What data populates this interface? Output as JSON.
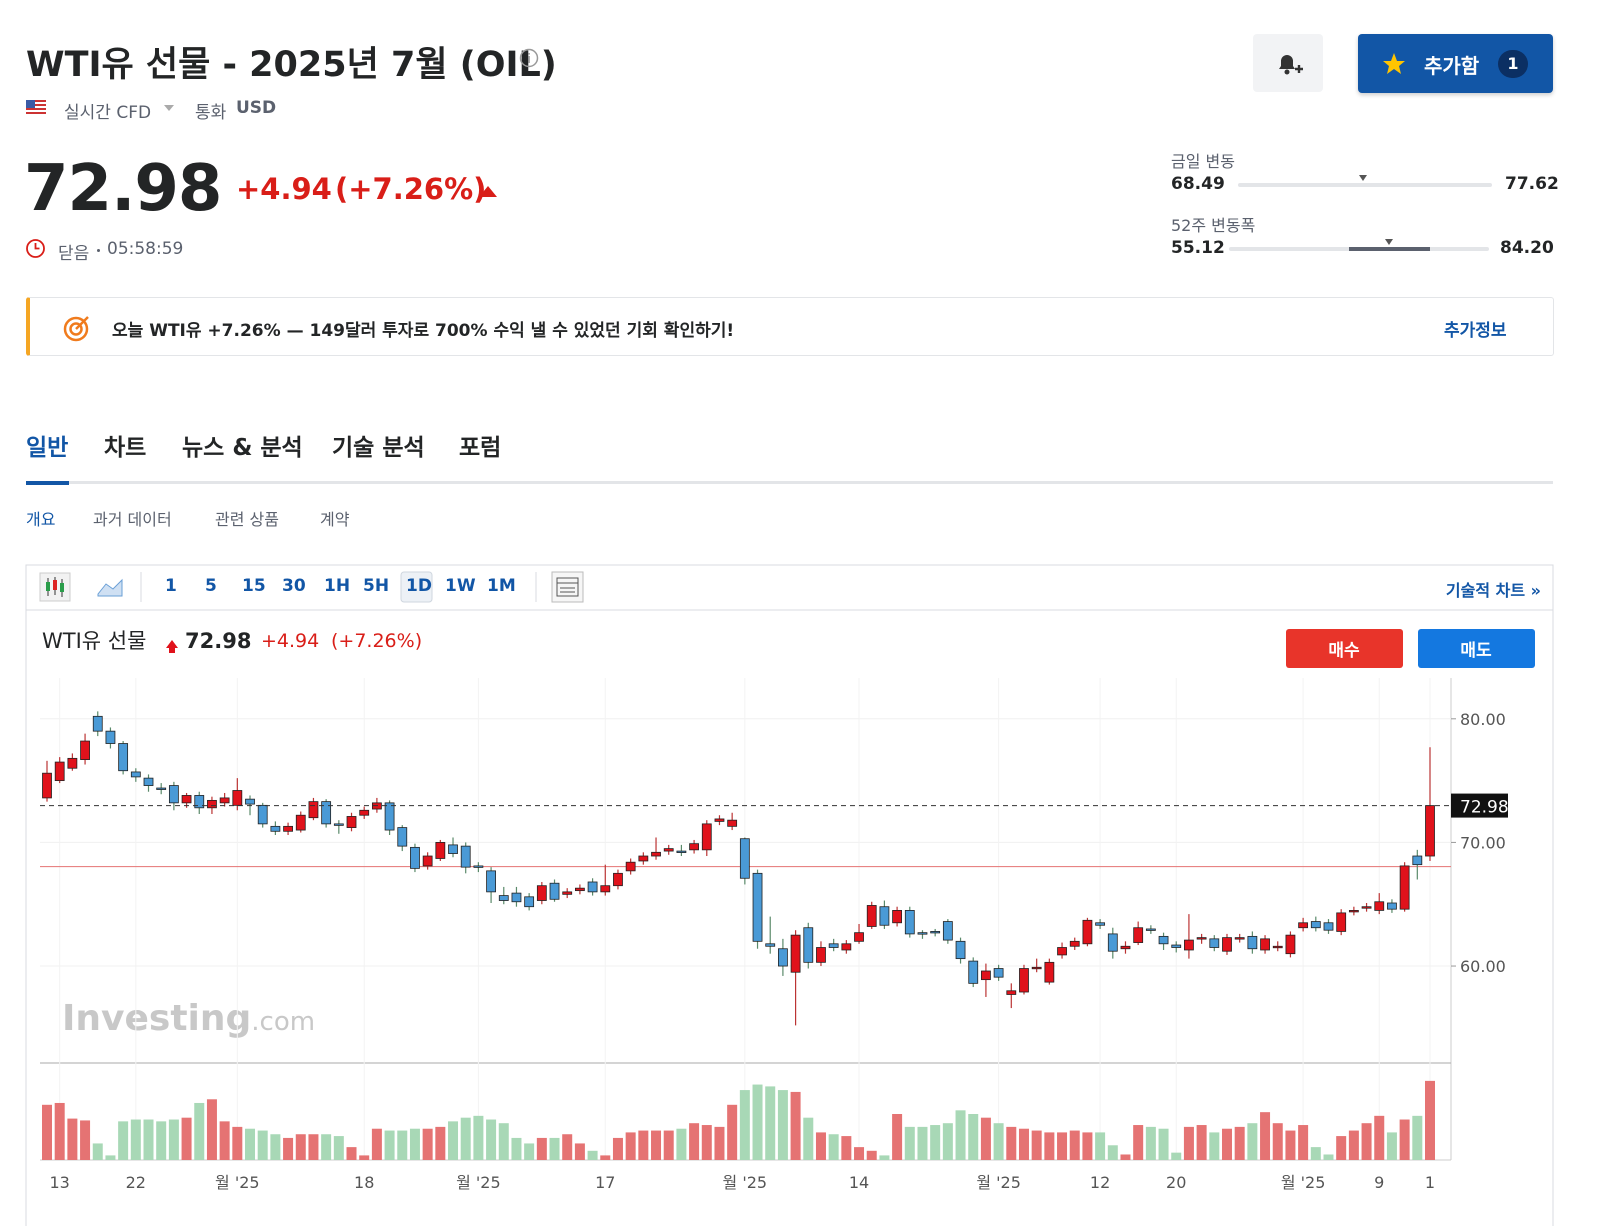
{
  "header": {
    "title": "WTI유 선물 - 2025년 7월 (OIL)",
    "realtime": "실시간 CFD",
    "currency_label": "통화",
    "currency": "USD",
    "add_button": "추가함",
    "add_count": "1"
  },
  "quote": {
    "price": "72.98",
    "change": "+4.94",
    "change_pct": "(+7.26%)",
    "status": "닫음",
    "time": "05:58:59"
  },
  "ranges": {
    "day": {
      "label": "금일 변동",
      "low": "68.49",
      "high": "77.62"
    },
    "week52": {
      "label": "52주 변동폭",
      "low": "55.12",
      "high": "84.20"
    }
  },
  "banner": {
    "text": "오늘 WTI유 +7.26% — 149달러 투자로 700% 수익 낼 수 있었던 기회 확인하기!",
    "link": "추가정보"
  },
  "tabs": [
    "일반",
    "차트",
    "뉴스 & 분석",
    "기술 분석",
    "포럼"
  ],
  "subtabs": [
    "개요",
    "과거 데이터",
    "관련 상품",
    "계약"
  ],
  "toolbar": {
    "intervals": [
      "1",
      "5",
      "15",
      "30",
      "1H",
      "5H",
      "1D",
      "1W",
      "1M"
    ],
    "tech_chart": "기술적 차트 »"
  },
  "chart_data": {
    "type": "candlestick",
    "title": "WTI유 선물",
    "legend_change": "+4.94",
    "legend_pct": "(+7.26%)",
    "buy": "매수",
    "sell": "매도",
    "watermark": [
      "Investing",
      ".com"
    ],
    "up_color": "#e0121b",
    "down_color": "#4a9ad6",
    "volume_up_color": "#e57373",
    "volume_down_color": "#a8d8b6",
    "prev_close": 68.04,
    "prev_close_color": "#e57373",
    "ylim": [
      52.4,
      83.3
    ],
    "yticks": [
      {
        "value": 60,
        "label": "60.00"
      },
      {
        "value": 70,
        "label": "70.00"
      },
      {
        "value": 80,
        "label": "80.00"
      }
    ],
    "volume_lim": [
      0,
      100
    ],
    "categories": [
      null,
      "13",
      null,
      null,
      null,
      null,
      null,
      "22",
      null,
      null,
      null,
      null,
      null,
      null,
      null,
      "월 '25",
      null,
      null,
      null,
      null,
      null,
      null,
      null,
      null,
      null,
      "18",
      null,
      null,
      null,
      null,
      null,
      null,
      null,
      null,
      "월 '25",
      null,
      null,
      null,
      null,
      null,
      null,
      null,
      null,
      null,
      "17",
      null,
      null,
      null,
      null,
      null,
      null,
      null,
      null,
      null,
      null,
      "월 '25",
      null,
      null,
      null,
      null,
      null,
      null,
      null,
      null,
      "14",
      null,
      null,
      null,
      null,
      null,
      null,
      null,
      null,
      null,
      null,
      "월 '25",
      null,
      null,
      null,
      null,
      null,
      null,
      null,
      "12",
      null,
      null,
      null,
      null,
      null,
      "20",
      null,
      null,
      null,
      null,
      null,
      null,
      null,
      null,
      null,
      "월 '25",
      null,
      null,
      null,
      null,
      null,
      "9",
      null,
      null,
      null,
      "1"
    ],
    "open": [
      73.6,
      75.0,
      76.0,
      76.7,
      80.2,
      79.0,
      78.0,
      75.7,
      75.2,
      74.4,
      74.6,
      73.2,
      73.8,
      72.8,
      73.2,
      73.0,
      73.5,
      73.0,
      71.3,
      70.9,
      71.0,
      72.0,
      73.3,
      71.5,
      71.2,
      72.2,
      72.7,
      73.2,
      71.2,
      69.6,
      68.1,
      68.7,
      69.8,
      69.7,
      68.1,
      67.7,
      65.7,
      65.9,
      65.6,
      65.3,
      66.7,
      65.8,
      66.1,
      66.8,
      66.0,
      66.5,
      67.7,
      68.5,
      68.9,
      69.3,
      69.3,
      69.4,
      69.4,
      71.7,
      71.3,
      70.3,
      67.5,
      61.8,
      61.4,
      59.5,
      63.1,
      60.3,
      61.8,
      61.3,
      62.0,
      63.2,
      64.8,
      63.5,
      64.5,
      62.7,
      62.8,
      63.6,
      62.0,
      60.4,
      58.9,
      59.8,
      57.7,
      57.9,
      59.8,
      58.7,
      60.9,
      61.6,
      61.8,
      63.5,
      62.6,
      61.4,
      61.9,
      63.0,
      62.4,
      61.7,
      61.3,
      62.2,
      62.2,
      61.2,
      62.3,
      62.4,
      61.3,
      61.6,
      61.0,
      63.1,
      63.6,
      63.5,
      62.8,
      64.4,
      64.7,
      64.5,
      65.1,
      64.6,
      68.9,
      68.9
    ],
    "high": [
      76.6,
      76.9,
      77.2,
      78.8,
      80.6,
      79.3,
      78.2,
      76.0,
      75.5,
      74.8,
      74.9,
      74.0,
      74.1,
      73.7,
      74.0,
      75.2,
      73.8,
      73.2,
      71.7,
      71.6,
      72.5,
      73.6,
      73.5,
      71.8,
      72.4,
      72.9,
      73.6,
      73.4,
      71.4,
      69.9,
      69.2,
      70.2,
      70.4,
      70.0,
      68.4,
      68.0,
      66.4,
      66.4,
      65.9,
      66.8,
      67.0,
      66.3,
      66.6,
      67.1,
      68.2,
      67.8,
      68.7,
      69.2,
      70.4,
      69.8,
      69.8,
      70.2,
      71.8,
      72.2,
      72.4,
      70.4,
      67.8,
      64.0,
      62.2,
      62.9,
      63.5,
      62.0,
      62.2,
      62.1,
      63.4,
      65.2,
      65.3,
      64.8,
      64.8,
      62.9,
      63.0,
      63.8,
      62.3,
      60.7,
      60.2,
      60.1,
      58.6,
      60.1,
      60.6,
      60.6,
      61.9,
      62.3,
      63.9,
      63.8,
      63.1,
      62.0,
      63.6,
      63.3,
      62.7,
      62.0,
      64.2,
      62.6,
      62.5,
      62.6,
      62.6,
      62.8,
      62.5,
      62.0,
      62.8,
      63.9,
      64.0,
      63.8,
      64.6,
      64.8,
      65.1,
      65.9,
      65.4,
      68.4,
      69.4,
      77.7
    ],
    "low": [
      73.3,
      74.8,
      75.8,
      76.3,
      78.6,
      77.6,
      75.5,
      74.9,
      74.1,
      73.9,
      72.6,
      72.8,
      72.3,
      72.3,
      72.9,
      72.6,
      72.2,
      71.2,
      70.6,
      70.6,
      70.8,
      71.8,
      71.2,
      70.7,
      70.9,
      71.9,
      72.4,
      70.6,
      69.3,
      67.6,
      67.8,
      68.5,
      68.8,
      67.5,
      67.6,
      65.1,
      65.0,
      64.8,
      64.5,
      65.0,
      65.2,
      65.5,
      65.8,
      65.7,
      65.7,
      66.2,
      67.4,
      68.2,
      68.6,
      69.0,
      68.9,
      69.1,
      68.9,
      71.4,
      71.0,
      66.6,
      61.4,
      61.0,
      59.2,
      55.2,
      59.8,
      60.0,
      61.2,
      61.0,
      61.8,
      63.0,
      63.0,
      63.2,
      62.3,
      62.2,
      62.4,
      61.8,
      60.2,
      58.3,
      57.5,
      58.8,
      56.6,
      57.7,
      59.5,
      58.5,
      60.6,
      61.3,
      61.6,
      63.0,
      60.6,
      61.0,
      61.7,
      62.6,
      61.3,
      61.1,
      60.6,
      61.8,
      61.2,
      60.9,
      61.9,
      61.0,
      61.0,
      61.2,
      60.7,
      62.8,
      62.8,
      62.6,
      62.5,
      64.1,
      64.4,
      64.2,
      64.3,
      64.4,
      67.0,
      68.5
    ],
    "close": [
      75.6,
      76.5,
      76.8,
      78.2,
      79.0,
      78.0,
      75.8,
      75.3,
      74.6,
      74.3,
      73.2,
      73.8,
      72.8,
      73.4,
      73.6,
      74.2,
      73.1,
      71.5,
      70.9,
      71.3,
      72.2,
      73.3,
      71.5,
      71.4,
      72.1,
      72.6,
      73.2,
      71.0,
      69.7,
      67.9,
      68.9,
      70.0,
      69.1,
      68.0,
      68.0,
      66.0,
      65.3,
      65.2,
      64.8,
      66.5,
      65.4,
      66.0,
      66.3,
      66.0,
      66.5,
      67.5,
      68.4,
      68.9,
      69.2,
      69.5,
      69.2,
      69.9,
      71.5,
      71.9,
      71.8,
      67.1,
      62.0,
      61.6,
      60.0,
      62.5,
      60.3,
      61.5,
      61.5,
      61.8,
      62.7,
      64.9,
      63.3,
      64.5,
      62.6,
      62.6,
      62.7,
      62.1,
      60.6,
      58.6,
      59.6,
      59.1,
      58.0,
      59.8,
      59.9,
      60.3,
      61.5,
      62.0,
      63.7,
      63.3,
      61.2,
      61.6,
      63.1,
      62.9,
      61.8,
      61.5,
      62.1,
      62.3,
      61.5,
      62.3,
      62.3,
      61.4,
      62.2,
      61.6,
      62.5,
      63.5,
      63.1,
      62.9,
      64.3,
      64.5,
      64.8,
      65.2,
      64.6,
      68.1,
      68.2,
      72.98
    ],
    "volume": [
      60,
      62,
      45,
      43,
      18,
      5,
      42,
      44,
      44,
      42,
      44,
      46,
      62,
      66,
      42,
      36,
      34,
      32,
      28,
      24,
      28,
      28,
      28,
      26,
      14,
      5,
      34,
      32,
      32,
      34,
      34,
      36,
      42,
      46,
      48,
      44,
      40,
      24,
      18,
      24,
      24,
      28,
      18,
      10,
      5,
      24,
      30,
      32,
      32,
      32,
      34,
      40,
      38,
      36,
      60,
      76,
      82,
      80,
      76,
      74,
      46,
      30,
      28,
      26,
      14,
      10,
      5,
      50,
      36,
      36,
      38,
      40,
      54,
      50,
      46,
      40,
      36,
      34,
      32,
      30,
      30,
      32,
      30,
      30,
      16,
      6,
      38,
      36,
      34,
      8,
      36,
      38,
      30,
      34,
      36,
      40,
      52,
      40,
      32,
      38,
      14,
      6,
      26,
      32,
      40,
      48,
      30,
      44,
      48,
      86
    ]
  }
}
